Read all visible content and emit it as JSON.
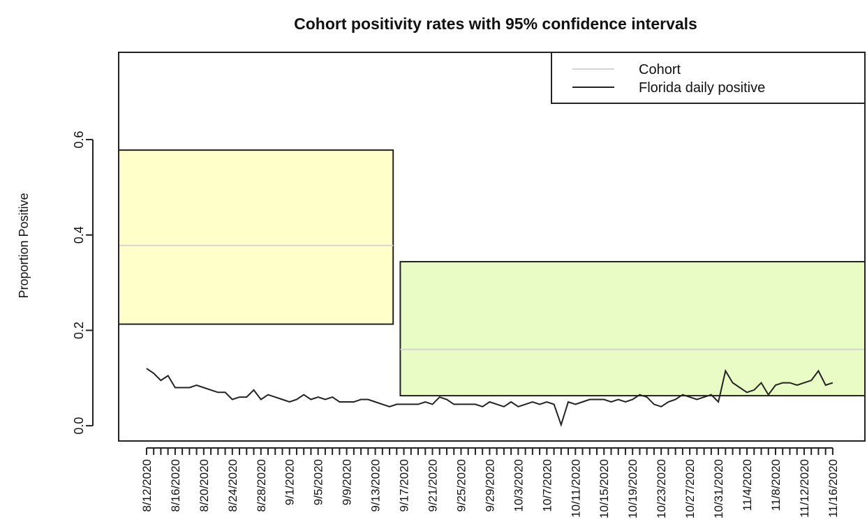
{
  "chart_data": {
    "type": "line",
    "title": "Cohort positivity rates with 95% confidence intervals",
    "y_label": "Proportion Positive",
    "categories": [
      "8/12/2020",
      null,
      null,
      null,
      "8/16/2020",
      null,
      null,
      null,
      "8/20/2020",
      null,
      null,
      null,
      "8/24/2020",
      null,
      null,
      null,
      "8/28/2020",
      null,
      null,
      null,
      "9/1/2020",
      null,
      null,
      null,
      "9/5/2020",
      null,
      null,
      null,
      "9/9/2020",
      null,
      null,
      null,
      "9/13/2020",
      null,
      null,
      null,
      "9/17/2020",
      null,
      null,
      null,
      "9/21/2020",
      null,
      null,
      null,
      "9/25/2020",
      null,
      null,
      null,
      "9/29/2020",
      null,
      null,
      null,
      "10/3/2020",
      null,
      null,
      null,
      "10/7/2020",
      null,
      null,
      null,
      "10/11/2020",
      null,
      null,
      null,
      "10/15/2020",
      null,
      null,
      null,
      "10/19/2020",
      null,
      null,
      null,
      "10/23/2020",
      null,
      null,
      null,
      "10/27/2020",
      null,
      null,
      null,
      "10/31/2020",
      null,
      null,
      null,
      "11/4/2020",
      null,
      null,
      null,
      "11/8/2020",
      null,
      null,
      null,
      "11/12/2020",
      null,
      null,
      null,
      "11/16/2020"
    ],
    "xlim": [
      -3.9,
      100.6
    ],
    "ylim": [
      -0.032,
      0.783
    ],
    "yticks": [
      {
        "value": 0,
        "label": "0.0"
      },
      0.2,
      0.4,
      0.6
    ],
    "series": [
      {
        "name": "Cohort",
        "color": "#d4d4d4",
        "intervals": [
          {
            "x_start": -3.9,
            "x_end": 34.5,
            "lower": 0.213,
            "mean": 0.378,
            "upper": 0.578,
            "fill": "#ffffc9"
          },
          {
            "x_start": 35.5,
            "x_end": 100.6,
            "lower": 0.063,
            "mean": 0.16,
            "upper": 0.344,
            "fill": "#e9fcc6"
          }
        ]
      },
      {
        "name": "Florida daily positive",
        "color": "#222222",
        "values": [
          0.12,
          0.11,
          0.095,
          0.105,
          0.08,
          0.08,
          0.08,
          0.085,
          0.08,
          0.075,
          0.07,
          0.07,
          0.055,
          0.06,
          0.06,
          0.075,
          0.055,
          0.065,
          0.06,
          0.055,
          0.05,
          0.055,
          0.065,
          0.055,
          0.06,
          0.055,
          0.06,
          0.05,
          0.05,
          0.05,
          0.055,
          0.055,
          0.05,
          0.045,
          0.04,
          0.045,
          0.045,
          0.045,
          0.045,
          0.05,
          0.045,
          0.06,
          0.055,
          0.045,
          0.045,
          0.045,
          0.045,
          0.04,
          0.05,
          0.045,
          0.04,
          0.05,
          0.04,
          0.045,
          0.05,
          0.045,
          0.05,
          0.045,
          0.002,
          0.05,
          0.045,
          0.05,
          0.055,
          0.055,
          0.055,
          0.05,
          0.055,
          0.05,
          0.055,
          0.065,
          0.06,
          0.045,
          0.04,
          0.05,
          0.055,
          0.065,
          0.06,
          0.055,
          0.06,
          0.065,
          0.05,
          0.115,
          0.09,
          0.08,
          0.07,
          0.075,
          0.09,
          0.065,
          0.085,
          0.09,
          0.09,
          0.085,
          0.09,
          0.095,
          0.115,
          0.085,
          0.09
        ]
      }
    ]
  }
}
